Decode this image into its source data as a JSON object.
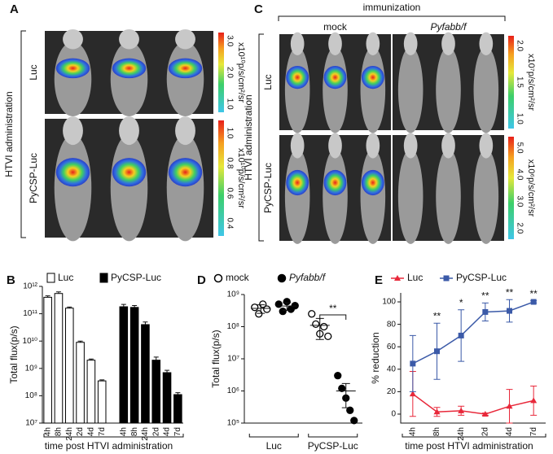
{
  "figure": {
    "A": {
      "label": "A",
      "side_label": "HTVI administration",
      "rows": [
        {
          "label": "Luc",
          "colorbar_unit": "x10¹⁰p/s/cm²/sr",
          "colorbar_ticks": [
            "3.0",
            "2.0",
            "1.0"
          ]
        },
        {
          "label": "PyCSP-Luc",
          "colorbar_unit": "x10¹⁰p/s/cm²/sr",
          "colorbar_ticks": [
            "1.0",
            "0.8",
            "0.6",
            "0.4"
          ]
        }
      ]
    },
    "C": {
      "label": "C",
      "header": "immunization",
      "columns": [
        "mock",
        "Pyfabb/f"
      ],
      "side_label": "HTVI administration",
      "rows": [
        {
          "label": "Luc",
          "colorbar_unit": "x10⁷p/s/cm²/sr",
          "colorbar_ticks": [
            "2.0",
            "1.5",
            "1.0"
          ]
        },
        {
          "label": "PyCSP-Luc",
          "colorbar_unit": "x10⁶p/s/cm²/sr",
          "colorbar_ticks": [
            "5.0",
            "4.0",
            "3.0",
            "2.0"
          ]
        }
      ]
    }
  },
  "chart_data": [
    {
      "panel_label": "B",
      "type": "bar",
      "categories": [
        "4h",
        "8h",
        "24h",
        "2d",
        "4d",
        "7d"
      ],
      "series": [
        {
          "name": "Luc",
          "color": "#ffffff",
          "values": [
            400000000000,
            550000000000,
            160000000000,
            9000000000,
            2000000000,
            350000000
          ],
          "errors": [
            50000000000,
            80000000000,
            15000000000,
            1000000000,
            200000000,
            30000000
          ]
        },
        {
          "name": "PyCSP-Luc",
          "color": "#000000",
          "values": [
            180000000000,
            170000000000,
            40000000000,
            2000000000,
            700000000,
            110000000
          ],
          "errors": [
            40000000000,
            30000000000,
            10000000000,
            600000000,
            150000000,
            20000000
          ]
        }
      ],
      "ylim": [
        10000000,
        1000000000000
      ],
      "log_y": true,
      "yticks": [
        {
          "value": 10000000,
          "label": "10⁷"
        },
        {
          "value": 100000000,
          "label": "10⁸"
        },
        {
          "value": 1000000000,
          "label": "10⁹"
        },
        {
          "value": 10000000000,
          "label": "10¹⁰"
        },
        {
          "value": 100000000000,
          "label": "10¹¹"
        },
        {
          "value": 1000000000000,
          "label": "10¹²"
        }
      ],
      "ylabel": "Total flux(p/s)",
      "xlabel": "time post HTVI administration"
    },
    {
      "panel_label": "D",
      "type": "dot",
      "categories": [
        "Luc",
        "PyCSP-Luc"
      ],
      "series": [
        {
          "name": "mock",
          "marker": "open",
          "values": [
            [
              400000000,
              250000000,
              500000000,
              350000000
            ],
            [
              250000000,
              120000000,
              60000000,
              100000000,
              50000000
            ]
          ],
          "mean": [
            370000000,
            110000000
          ],
          "sd": [
            110000000,
            70000000
          ]
        },
        {
          "name": "Pyfabb/f",
          "marker": "filled",
          "values": [
            [
              500000000,
              300000000,
              600000000,
              350000000,
              450000000
            ],
            [
              3000000,
              1200000,
              600000,
              250000,
              120000
            ]
          ],
          "mean": [
            440000000,
            1000000
          ],
          "sd": [
            120000000,
            700000
          ]
        }
      ],
      "ylim": [
        100000,
        1000000000
      ],
      "log_y": true,
      "yticks": [
        {
          "value": 100000,
          "label": "10⁵"
        },
        {
          "value": 1000000,
          "label": "10⁶"
        },
        {
          "value": 10000000,
          "label": "10⁷"
        },
        {
          "value": 100000000,
          "label": "10⁸"
        },
        {
          "value": 1000000000,
          "label": "10⁹"
        }
      ],
      "ylabel": "Total flux(p/s)",
      "annotation": "**"
    },
    {
      "panel_label": "E",
      "type": "line",
      "categories": [
        "4h",
        "8h",
        "24h",
        "2d",
        "4d",
        "7d"
      ],
      "series": [
        {
          "name": "Luc",
          "color": "#e8283a",
          "marker": "triangle",
          "values": [
            18,
            2,
            3,
            0,
            7,
            12
          ],
          "errors": [
            20,
            4,
            4,
            1,
            15,
            13
          ]
        },
        {
          "name": "PyCSP-Luc",
          "color": "#3b5aa8",
          "marker": "square",
          "values": [
            45,
            56,
            70,
            91,
            92,
            100
          ],
          "errors": [
            25,
            25,
            23,
            8,
            10,
            1
          ]
        }
      ],
      "ylim": [
        -8,
        108
      ],
      "yticks": [
        0,
        20,
        40,
        60,
        80,
        100
      ],
      "significance": [
        null,
        "**",
        "*",
        "**",
        "**",
        "**"
      ],
      "ylabel": "% reduction",
      "xlabel": "time post HTVI administration"
    }
  ]
}
